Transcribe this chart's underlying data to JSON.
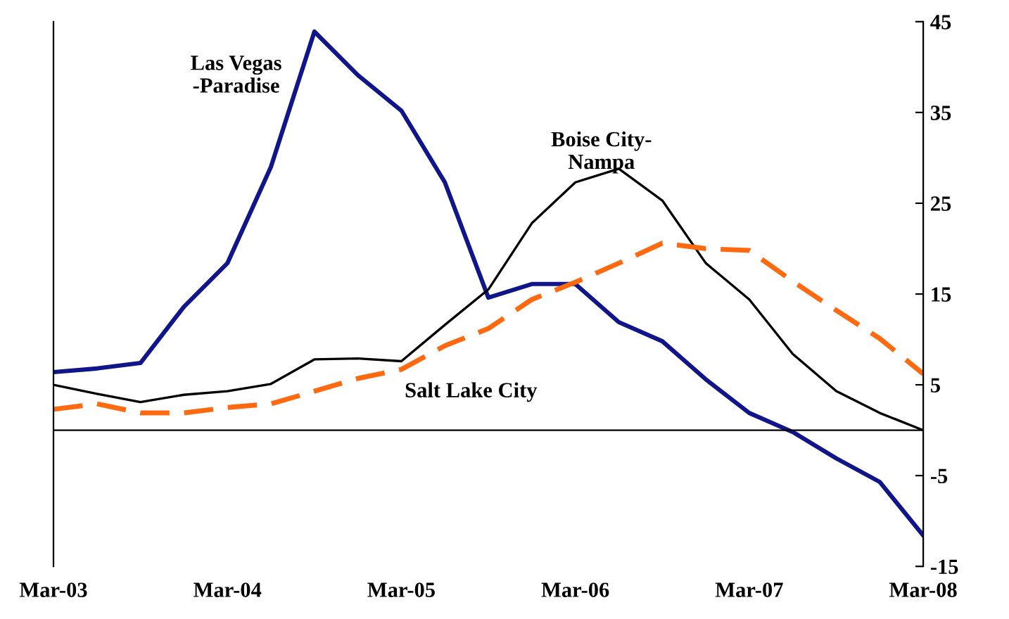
{
  "chart_data": {
    "type": "line",
    "categories": [
      "Mar-03",
      null,
      null,
      null,
      "Mar-04",
      null,
      null,
      null,
      "Mar-05",
      null,
      null,
      null,
      "Mar-06",
      null,
      null,
      null,
      "Mar-07",
      null,
      null,
      null,
      "Mar-08"
    ],
    "series": [
      {
        "name": "Las Vegas\n-Paradise",
        "color": "#10168a",
        "line_style": "solid",
        "values": [
          6.4,
          6.8,
          7.4,
          13.6,
          18.4,
          29.0,
          43.9,
          39.1,
          35.2,
          27.3,
          14.6,
          16.1,
          16.1,
          11.9,
          9.8,
          5.6,
          1.9,
          -0.2,
          -3.1,
          -5.7,
          -11.6
        ]
      },
      {
        "name": "Boise City-\nNampa",
        "color": "#000000",
        "line_style": "solid",
        "values": [
          5.0,
          4.0,
          3.1,
          3.9,
          4.3,
          5.1,
          7.8,
          7.9,
          7.6,
          11.6,
          15.5,
          22.8,
          27.3,
          28.8,
          25.3,
          18.4,
          14.4,
          8.4,
          4.3,
          1.9,
          0.0
        ]
      },
      {
        "name": "Salt Lake City",
        "color": "#ff6a10",
        "line_style": "dashed",
        "values": [
          2.3,
          2.9,
          1.9,
          1.9,
          2.5,
          2.9,
          4.3,
          5.7,
          6.7,
          9.3,
          11.2,
          14.4,
          16.3,
          18.4,
          20.6,
          20.0,
          19.8,
          16.4,
          13.2,
          10.1,
          6.2
        ]
      }
    ],
    "ylim": [
      -15,
      45
    ],
    "yticks": [
      -15,
      -5,
      5,
      15,
      25,
      35,
      45
    ],
    "ref_lines": [
      {
        "axis": "y",
        "value": 0,
        "color": "#000000"
      }
    ],
    "grid": false,
    "legend": false
  }
}
